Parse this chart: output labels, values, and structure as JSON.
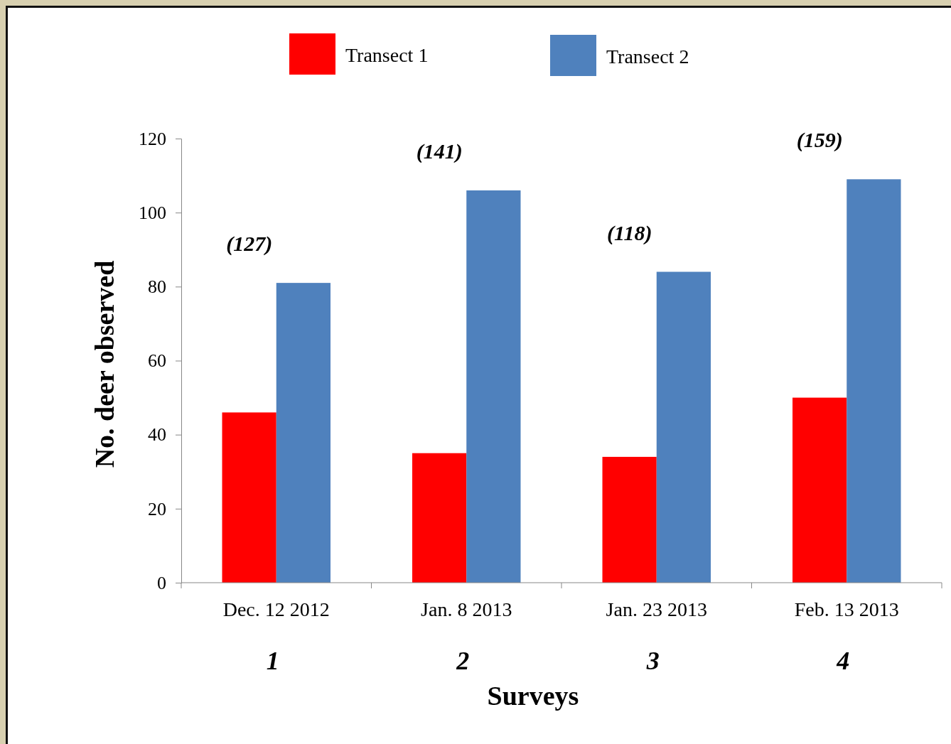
{
  "chart_data": {
    "type": "bar",
    "xlabel": "Surveys",
    "ylabel": "No. deer observed",
    "categories": [
      "Dec. 12 2012",
      "Jan. 8 2013",
      "Jan. 23 2013",
      "Feb. 13 2013"
    ],
    "series": [
      {
        "name": "Transect 1",
        "color": "#ff0000",
        "values": [
          46,
          35,
          34,
          50
        ]
      },
      {
        "name": "Transect 2",
        "color": "#4f81bd",
        "values": [
          81,
          106,
          84,
          109
        ]
      }
    ],
    "ylim": [
      0,
      120
    ],
    "yticks": [
      0,
      20,
      40,
      60,
      80,
      100,
      120
    ],
    "grid": false,
    "legend": "top",
    "annotations": [
      "(127)",
      "(141)",
      "(118)",
      "(159)",
      "1",
      "2",
      "3",
      "4"
    ]
  }
}
